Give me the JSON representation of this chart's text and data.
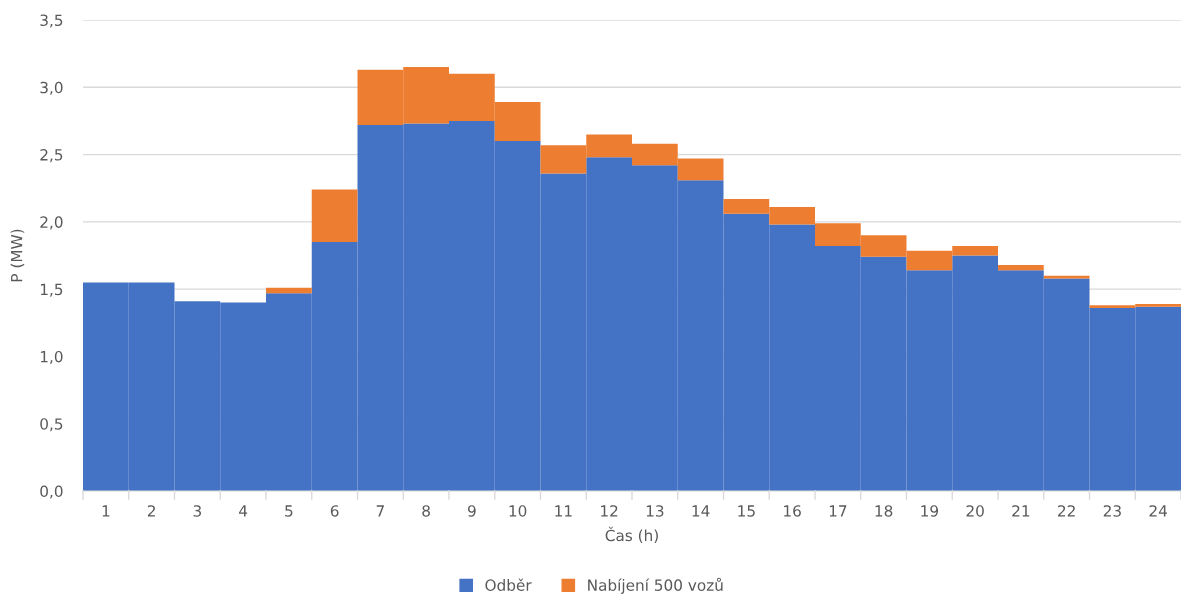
{
  "chart_data": {
    "type": "bar",
    "stacked": true,
    "xlabel": "Čas (h)",
    "ylabel": "P (MW)",
    "categories": [
      "1",
      "2",
      "3",
      "4",
      "5",
      "6",
      "7",
      "8",
      "9",
      "10",
      "11",
      "12",
      "13",
      "14",
      "15",
      "16",
      "17",
      "18",
      "19",
      "20",
      "21",
      "22",
      "23",
      "24"
    ],
    "series": [
      {
        "name": "Odběr",
        "color": "#4472c4",
        "values": [
          1.55,
          1.55,
          1.41,
          1.4,
          1.47,
          1.85,
          2.72,
          2.73,
          2.75,
          2.6,
          2.36,
          2.48,
          2.42,
          2.31,
          2.06,
          1.98,
          1.82,
          1.74,
          1.64,
          1.75,
          1.64,
          1.58,
          1.36,
          1.37
        ]
      },
      {
        "name": "Nabíjení 500 vozů",
        "color": "#ed7d31",
        "values": [
          0,
          0,
          0,
          0,
          0.04,
          0.39,
          0.41,
          0.42,
          0.35,
          0.29,
          0.21,
          0.17,
          0.16,
          0.16,
          0.11,
          0.13,
          0.17,
          0.16,
          0.145,
          0.07,
          0.04,
          0.02,
          0.02,
          0.02
        ]
      }
    ],
    "ylim": [
      0,
      3.5
    ],
    "yticks": [
      {
        "value": 0,
        "label": "0,0"
      },
      {
        "value": 0.5,
        "label": "0,5"
      },
      {
        "value": 1,
        "label": "1,0"
      },
      {
        "value": 1.5,
        "label": "1,5"
      },
      {
        "value": 2,
        "label": "2,0"
      },
      {
        "value": 2.5,
        "label": "2,5"
      },
      {
        "value": 3,
        "label": "3,0"
      },
      {
        "value": 3.5,
        "label": "3,5"
      }
    ],
    "grid": "y",
    "legend": "bottom"
  }
}
